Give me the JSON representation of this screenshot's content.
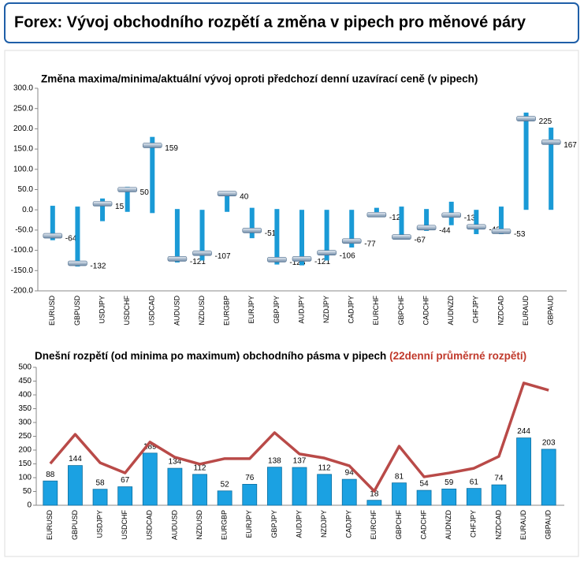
{
  "title": "Forex: Vývoj obchodního rozpětí a změna v pipech pro měnové páry",
  "chart_data": [
    {
      "type": "range",
      "title": "Změna maxima/minima/aktuální vývoj oproti předchozí denní uzavírací ceně (v pipech)",
      "categories": [
        "EURUSD",
        "GBPUSD",
        "USDJPY",
        "USDCHF",
        "USDCAD",
        "AUDUSD",
        "NZDUSD",
        "EURGBP",
        "EURJPY",
        "GBPJPY",
        "AUDJPY",
        "NZDJPY",
        "CADJPY",
        "EURCHF",
        "GBPCHF",
        "CADCHF",
        "AUDNZD",
        "CHFJPY",
        "NZDCAD",
        "EURAUD",
        "GBPAUD"
      ],
      "values": [
        -64,
        -132,
        15,
        50,
        159,
        -121,
        -107,
        40,
        -51,
        -123,
        -121,
        -106,
        -77,
        -12,
        -67,
        -44,
        -13,
        -42,
        -53,
        225,
        167
      ],
      "high": [
        10,
        8,
        28,
        57,
        180,
        2,
        0,
        45,
        5,
        2,
        0,
        0,
        0,
        5,
        8,
        2,
        20,
        0,
        8,
        240,
        203
      ],
      "low": [
        -75,
        -140,
        -28,
        -5,
        -8,
        -130,
        -125,
        -5,
        -70,
        -135,
        -137,
        -125,
        -93,
        -13,
        -72,
        -52,
        -38,
        -60,
        -60,
        0,
        0
      ],
      "color": "#1a9ad6",
      "ylim": [
        -200,
        300
      ],
      "yticks": [
        {
          "value": -200,
          "label": "-200.0"
        },
        {
          "value": -150,
          "label": "-150.0"
        },
        {
          "value": -100,
          "label": "-100.0"
        },
        {
          "value": -50,
          "label": "-50.0"
        },
        {
          "value": 0,
          "label": "0.0"
        },
        {
          "value": 50,
          "label": "50.0"
        },
        {
          "value": 100,
          "label": "100.0"
        },
        {
          "value": 150,
          "label": "150.0"
        },
        {
          "value": 200,
          "label": "200.0"
        },
        {
          "value": 250,
          "label": "250.0"
        },
        {
          "value": 300,
          "label": "300.0"
        }
      ]
    },
    {
      "type": "bar_line",
      "title": "Dnešní rozpětí (od minima po maximum) obchodního pásma v pipech",
      "categories": [
        "EURUSD",
        "GBPUSD",
        "USDJPY",
        "USDCHF",
        "USDCAD",
        "AUDUSD",
        "NZDUSD",
        "EURGBP",
        "EURJPY",
        "GBPJPY",
        "AUDJPY",
        "NZDJPY",
        "CADJPY",
        "EURCHF",
        "GBPCHF",
        "CADCHF",
        "AUDNZD",
        "CHFJPY",
        "NZDCAD",
        "EURAUD",
        "GBPAUD"
      ],
      "series": [
        {
          "color": "#1ba1e2",
          "values": [
            88,
            144,
            58,
            67,
            189,
            134,
            112,
            52,
            76,
            138,
            137,
            112,
            94,
            18,
            81,
            54,
            59,
            61,
            74,
            244,
            203
          ]
        },
        {
          "name": "(22denní průměrné rozpětí)",
          "color": "#b94a48",
          "values": [
            151,
            257,
            154,
            117,
            229,
            174,
            149,
            169,
            169,
            263,
            186,
            171,
            143,
            51,
            214,
            103,
            117,
            134,
            177,
            443,
            417
          ]
        }
      ],
      "ylim": [
        0,
        500
      ],
      "yticks": [
        0,
        50,
        100,
        150,
        200,
        250,
        300,
        350,
        400,
        450,
        500
      ]
    }
  ]
}
